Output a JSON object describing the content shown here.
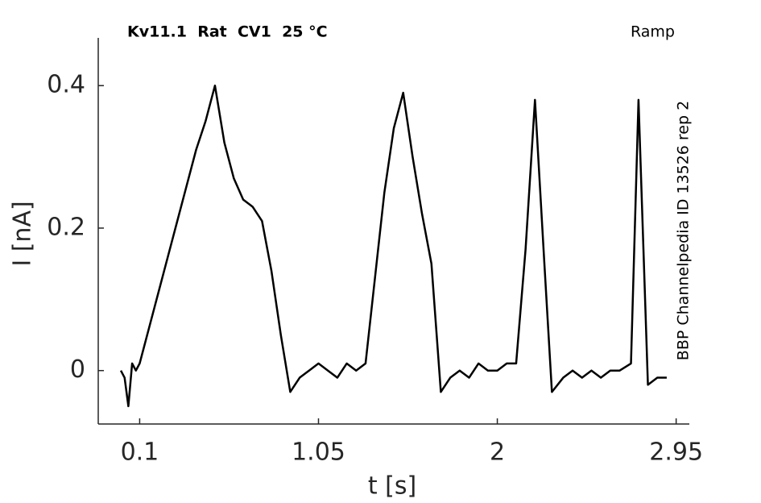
{
  "chart_data": {
    "type": "line",
    "title": "Kv11.1  Rat  CV1  25 °C",
    "subtitle": "Ramp",
    "annotation": "BBP Channelpedia ID 13526 rep 2",
    "xlabel": "t [s]",
    "ylabel": "I [nA]",
    "x": [
      0.0,
      0.02,
      0.04,
      0.06,
      0.08,
      0.1,
      0.15,
      0.2,
      0.25,
      0.3,
      0.35,
      0.4,
      0.45,
      0.5,
      0.55,
      0.6,
      0.65,
      0.7,
      0.75,
      0.8,
      0.85,
      0.9,
      0.95,
      1.0,
      1.05,
      1.1,
      1.15,
      1.2,
      1.25,
      1.3,
      1.35,
      1.4,
      1.45,
      1.5,
      1.55,
      1.6,
      1.65,
      1.7,
      1.75,
      1.8,
      1.85,
      1.9,
      1.95,
      2.0,
      2.05,
      2.1,
      2.15,
      2.2,
      2.25,
      2.29,
      2.35,
      2.4,
      2.45,
      2.5,
      2.55,
      2.6,
      2.65,
      2.71,
      2.75,
      2.8,
      2.85,
      2.9
    ],
    "series": [
      {
        "color": "#000000",
        "values": [
          0,
          -0.01,
          -0.05,
          0.01,
          0,
          0.01,
          0.06,
          0.11,
          0.16,
          0.21,
          0.26,
          0.31,
          0.35,
          0.4,
          0.32,
          0.27,
          0.24,
          0.23,
          0.21,
          0.14,
          0.05,
          -0.03,
          -0.01,
          0,
          0.01,
          0,
          -0.01,
          0.01,
          0,
          0.01,
          0.13,
          0.25,
          0.34,
          0.39,
          0.3,
          0.22,
          0.15,
          -0.03,
          -0.01,
          0,
          -0.01,
          0.01,
          0,
          0,
          0.01,
          0.01,
          0.17,
          0.38,
          0.15,
          -0.03,
          -0.01,
          0,
          -0.01,
          0,
          -0.01,
          0,
          0,
          0.01,
          0.38,
          -0.02,
          -0.01,
          -0.01
        ]
      }
    ],
    "xlim": [
      -0.12,
      3.02
    ],
    "ylim": [
      -0.075,
      0.467
    ],
    "xticks": [
      0.1,
      1.05,
      2,
      2.95
    ],
    "yticks": [
      0,
      0.2,
      0.4
    ]
  }
}
